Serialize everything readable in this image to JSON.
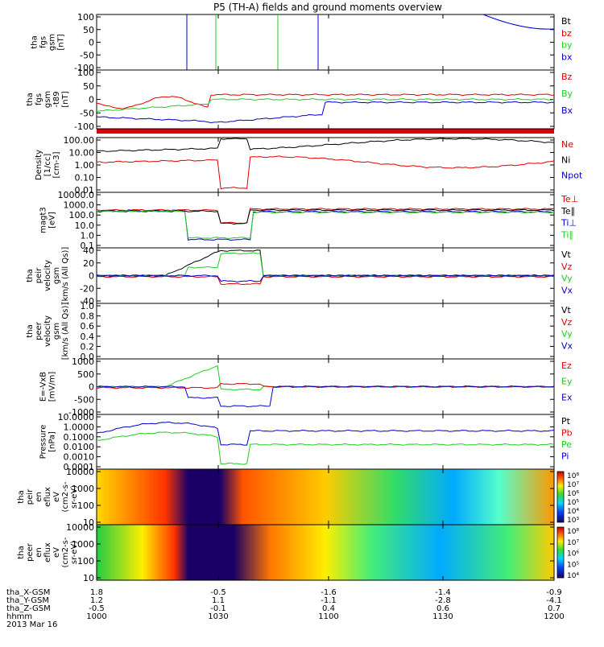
{
  "title": "P5 (TH-A) fields and ground moments overview",
  "colors": {
    "black": "#000000",
    "red": "#e00000",
    "green": "#22cc22",
    "blue": "#0000cc"
  },
  "footer": {
    "rows": [
      {
        "label": "tha_X-GSM",
        "values": [
          "1.8",
          "-0.5",
          "-1.6",
          "-1.4",
          "-0.9"
        ]
      },
      {
        "label": "tha_Y-GSM",
        "values": [
          "1.2",
          "1.1",
          "-1.1",
          "-2.8",
          "-4.1"
        ]
      },
      {
        "label": "tha_Z-GSM",
        "values": [
          "-0.5",
          "-0.1",
          "0.4",
          "0.6",
          "0.7"
        ]
      },
      {
        "label": "hhmm",
        "values": [
          "1000",
          "1030",
          "1100",
          "1130",
          "1200"
        ]
      }
    ],
    "date": "2013 Mar 16"
  },
  "chart_data": [
    {
      "type": "line",
      "ylabel_lines": [
        "tha",
        "fgs",
        "gsm",
        "[nT]"
      ],
      "yticks": [
        "100",
        "50",
        "0",
        "-50",
        "-100"
      ],
      "ylim": [
        -100,
        100
      ],
      "legend": [
        {
          "text": "Bt",
          "color": "#000000"
        },
        {
          "text": "bz",
          "color": "#e00000"
        },
        {
          "text": "by",
          "color": "#22cc22"
        },
        {
          "text": "bx",
          "color": "#0000cc"
        }
      ]
    },
    {
      "type": "line",
      "ylabel_lines": [
        "tha",
        "fgs",
        "gsm",
        "-t89",
        "[nT]"
      ],
      "yticks": [
        "100",
        "50",
        "0",
        "-50",
        "-100"
      ],
      "ylim": [
        -120,
        120
      ],
      "legend": [
        {
          "text": "Bz",
          "color": "#e00000"
        },
        {
          "text": "By",
          "color": "#22cc22"
        },
        {
          "text": "Bx",
          "color": "#0000cc"
        }
      ]
    },
    {
      "type": "line",
      "ylabel_lines": [
        "Density",
        "[1/cc]",
        "[cm-3]"
      ],
      "yticks": [
        "100.00",
        "10.00",
        "1.00",
        "0.10",
        "0.01"
      ],
      "scale": "log",
      "legend": [
        {
          "text": "Ne",
          "color": "#e00000"
        },
        {
          "text": "Ni",
          "color": "#000000"
        },
        {
          "text": "Npot",
          "color": "#0000cc"
        }
      ]
    },
    {
      "type": "line",
      "ylabel_lines": [
        "magt3",
        "[eV]"
      ],
      "yticks": [
        "10000.0",
        "1000.0",
        "100.0",
        "10.0",
        "1.0",
        "0.1"
      ],
      "scale": "log",
      "legend": [
        {
          "text": "Te⊥",
          "color": "#e00000"
        },
        {
          "text": "Te∥",
          "color": "#000000"
        },
        {
          "text": "Ti⊥",
          "color": "#0000cc"
        },
        {
          "text": "Ti∥",
          "color": "#22cc22"
        }
      ]
    },
    {
      "type": "line",
      "ylabel_lines": [
        "tha",
        "peir",
        "velocity",
        "gsm",
        "[km/s (All Qs)]"
      ],
      "yticks": [
        "40",
        "20",
        "0",
        "-20",
        "-40"
      ],
      "ylim": [
        -40,
        40
      ],
      "legend": [
        {
          "text": "Vt",
          "color": "#000000"
        },
        {
          "text": "Vz",
          "color": "#e00000"
        },
        {
          "text": "Vy",
          "color": "#22cc22"
        },
        {
          "text": "Vx",
          "color": "#0000cc"
        }
      ]
    },
    {
      "type": "line",
      "ylabel_lines": [
        "tha",
        "peer",
        "velocity",
        "gsm",
        "[km/s (All Qs)]"
      ],
      "yticks": [
        "1.0",
        "0.8",
        "0.6",
        "0.4",
        "0.2",
        "0.0"
      ],
      "ylim": [
        0,
        1
      ],
      "legend": [
        {
          "text": "Vt",
          "color": "#000000"
        },
        {
          "text": "Vz",
          "color": "#e00000"
        },
        {
          "text": "Vy",
          "color": "#22cc22"
        },
        {
          "text": "Vx",
          "color": "#0000cc"
        }
      ]
    },
    {
      "type": "line",
      "ylabel_lines": [
        "E=-VxB",
        "[mV/m]"
      ],
      "yticks": [
        "1000",
        "500",
        "0",
        "-500",
        "-1000"
      ],
      "ylim": [
        -1000,
        1000
      ],
      "legend": [
        {
          "text": "Ez",
          "color": "#e00000"
        },
        {
          "text": "Ey",
          "color": "#22cc22"
        },
        {
          "text": "Ex",
          "color": "#0000cc"
        }
      ]
    },
    {
      "type": "line",
      "ylabel_lines": [
        "Pressure",
        "[nPa]"
      ],
      "yticks": [
        "10.0000",
        "1.0000",
        "0.1000",
        "0.0100",
        "0.0010",
        "0.0001"
      ],
      "scale": "log",
      "legend": [
        {
          "text": "Pt",
          "color": "#000000"
        },
        {
          "text": "Pb",
          "color": "#e00000"
        },
        {
          "text": "Pe",
          "color": "#22cc22"
        },
        {
          "text": "Pi",
          "color": "#0000cc"
        }
      ]
    },
    {
      "type": "heatmap",
      "ylabel_lines": [
        "tha",
        "peir",
        "en",
        "eflux",
        "eV",
        "(cm2-s-",
        "sr-eV)"
      ],
      "yticks": [
        "10000",
        "1000",
        "100",
        "10"
      ],
      "colorbar": [
        "10⁸",
        "10⁷",
        "10⁶",
        "10⁵",
        "10⁴",
        "10³"
      ]
    },
    {
      "type": "heatmap",
      "ylabel_lines": [
        "tha",
        "peer",
        "en",
        "eflux",
        "eV",
        "(cm2-s-",
        "sr-eV)"
      ],
      "yticks": [
        "10000",
        "1000",
        "100",
        "10"
      ],
      "colorbar": [
        "10⁸",
        "10⁷",
        "10⁶",
        "10⁵",
        "10⁴"
      ]
    }
  ]
}
